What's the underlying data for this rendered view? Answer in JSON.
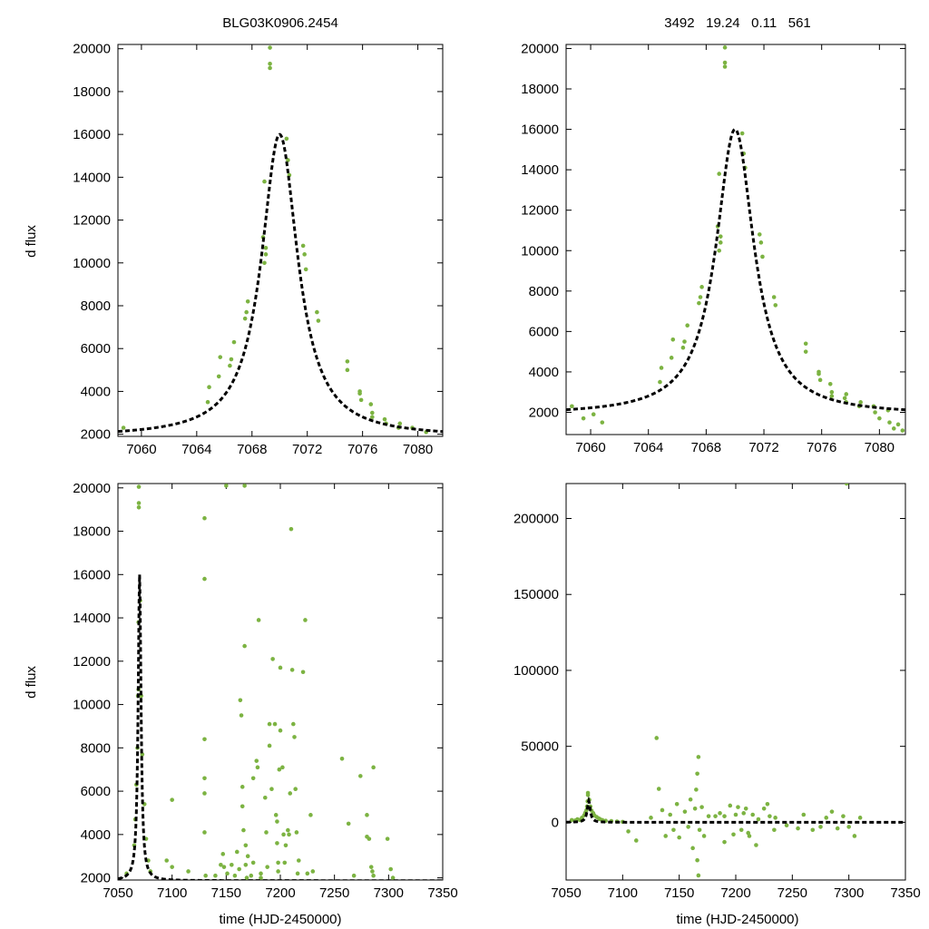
{
  "figure": {
    "title_left": "BLG03K0906.2454",
    "title_right": "3492   19.24   0.11   561",
    "ylabel": "d flux",
    "xlabel": "time (HJD-2450000)"
  },
  "colors": {
    "points": "#7cb342",
    "model": "#000000",
    "axes": "#000000"
  },
  "chart_data": [
    {
      "id": "top-left",
      "type": "scatter",
      "title": "BLG03K0906.2454",
      "xlabel": "",
      "ylabel": "d flux",
      "xlim": [
        7058.3,
        7081.8
      ],
      "ylim": [
        1900,
        20200
      ],
      "xticks": [
        7060,
        7064,
        7068,
        7072,
        7076,
        7080
      ],
      "yticks": [
        2000,
        4000,
        6000,
        8000,
        10000,
        12000,
        14000,
        16000,
        18000,
        20000
      ],
      "model": {
        "t0": 7070.0,
        "peak": 16000,
        "base": 1870,
        "width": 1.6
      },
      "points": [
        [
          7058.7,
          2300
        ],
        [
          7064.8,
          3500
        ],
        [
          7064.9,
          4200
        ],
        [
          7065.6,
          4700
        ],
        [
          7065.7,
          5600
        ],
        [
          7066.4,
          5200
        ],
        [
          7066.5,
          5500
        ],
        [
          7066.7,
          6300
        ],
        [
          7067.5,
          7400
        ],
        [
          7067.6,
          7700
        ],
        [
          7067.7,
          8200
        ],
        [
          7068.9,
          10000
        ],
        [
          7069.0,
          10400
        ],
        [
          7069.0,
          10700
        ],
        [
          7068.8,
          11200
        ],
        [
          7068.9,
          13800
        ],
        [
          7069.3,
          19100
        ],
        [
          7069.3,
          19300
        ],
        [
          7069.3,
          20050
        ],
        [
          7070.5,
          15800
        ],
        [
          7070.6,
          14800
        ],
        [
          7070.7,
          14100
        ],
        [
          7071.8,
          10400
        ],
        [
          7071.9,
          9700
        ],
        [
          7071.7,
          10800
        ],
        [
          7072.7,
          7700
        ],
        [
          7072.8,
          7300
        ],
        [
          7074.9,
          5000
        ],
        [
          7074.9,
          5400
        ],
        [
          7075.8,
          3900
        ],
        [
          7075.9,
          3600
        ],
        [
          7075.8,
          4000
        ],
        [
          7076.6,
          3400
        ],
        [
          7076.7,
          3000
        ],
        [
          7076.7,
          2800
        ],
        [
          7077.6,
          2700
        ],
        [
          7077.7,
          2500
        ],
        [
          7078.6,
          2300
        ],
        [
          7078.7,
          2500
        ],
        [
          7079.6,
          2300
        ],
        [
          7080.6,
          2100
        ]
      ]
    },
    {
      "id": "top-right",
      "type": "scatter",
      "title": "3492   19.24   0.11   561",
      "xlabel": "",
      "ylabel": "",
      "xlim": [
        7058.3,
        7081.8
      ],
      "ylim": [
        900,
        20200
      ],
      "xticks": [
        7060,
        7064,
        7068,
        7072,
        7076,
        7080
      ],
      "yticks": [
        2000,
        4000,
        6000,
        8000,
        10000,
        12000,
        14000,
        16000,
        18000,
        20000
      ],
      "model": {
        "t0": 7070.0,
        "peak": 16000,
        "base": 1870,
        "width": 1.6
      },
      "points": [
        [
          7058.7,
          2300
        ],
        [
          7059.5,
          1700
        ],
        [
          7060.2,
          1900
        ],
        [
          7060.8,
          1500
        ],
        [
          7064.8,
          3500
        ],
        [
          7064.9,
          4200
        ],
        [
          7065.6,
          4700
        ],
        [
          7065.7,
          5600
        ],
        [
          7066.4,
          5200
        ],
        [
          7066.5,
          5500
        ],
        [
          7066.7,
          6300
        ],
        [
          7067.5,
          7400
        ],
        [
          7067.6,
          7700
        ],
        [
          7067.7,
          8200
        ],
        [
          7068.9,
          10000
        ],
        [
          7069.0,
          10400
        ],
        [
          7069.0,
          10700
        ],
        [
          7068.8,
          11200
        ],
        [
          7068.9,
          13800
        ],
        [
          7069.3,
          19100
        ],
        [
          7069.3,
          19300
        ],
        [
          7069.3,
          20050
        ],
        [
          7070.5,
          15800
        ],
        [
          7070.6,
          14800
        ],
        [
          7070.7,
          14100
        ],
        [
          7071.8,
          10400
        ],
        [
          7071.9,
          9700
        ],
        [
          7071.7,
          10800
        ],
        [
          7072.7,
          7700
        ],
        [
          7072.8,
          7300
        ],
        [
          7074.9,
          5000
        ],
        [
          7074.9,
          5400
        ],
        [
          7075.8,
          3900
        ],
        [
          7075.9,
          3600
        ],
        [
          7075.8,
          4000
        ],
        [
          7076.6,
          3400
        ],
        [
          7076.7,
          3000
        ],
        [
          7076.7,
          2800
        ],
        [
          7077.6,
          2700
        ],
        [
          7077.7,
          2500
        ],
        [
          7077.7,
          2900
        ],
        [
          7078.6,
          2300
        ],
        [
          7078.7,
          2500
        ],
        [
          7079.6,
          2300
        ],
        [
          7079.7,
          2000
        ],
        [
          7080.0,
          1700
        ],
        [
          7080.6,
          2100
        ],
        [
          7080.7,
          1500
        ],
        [
          7081.0,
          1200
        ],
        [
          7081.3,
          1400
        ],
        [
          7081.6,
          1100
        ]
      ]
    },
    {
      "id": "bottom-left",
      "type": "scatter",
      "title": "",
      "xlabel": "time (HJD-2450000)",
      "ylabel": "d flux",
      "xlim": [
        7050,
        7350
      ],
      "ylim": [
        1900,
        20200
      ],
      "xticks": [
        7050,
        7100,
        7150,
        7200,
        7250,
        7300,
        7350
      ],
      "yticks": [
        2000,
        4000,
        6000,
        8000,
        10000,
        12000,
        14000,
        16000,
        18000,
        20000
      ],
      "model": {
        "t0": 7070.0,
        "peak": 16000,
        "base": 1870,
        "width": 1.6
      },
      "points": [
        [
          7058,
          2200
        ],
        [
          7065,
          3500
        ],
        [
          7066,
          4700
        ],
        [
          7067,
          6300
        ],
        [
          7068,
          8000
        ],
        [
          7068.5,
          10400
        ],
        [
          7069,
          10700
        ],
        [
          7069,
          13800
        ],
        [
          7069.3,
          19100
        ],
        [
          7069.3,
          19300
        ],
        [
          7069.3,
          20050
        ],
        [
          7070.5,
          14800
        ],
        [
          7071.5,
          10400
        ],
        [
          7072.5,
          7700
        ],
        [
          7074.5,
          5400
        ],
        [
          7076,
          3800
        ],
        [
          7078,
          2800
        ],
        [
          7080,
          2300
        ],
        [
          7095,
          2800
        ],
        [
          7100,
          5600
        ],
        [
          7100,
          2500
        ],
        [
          7115,
          2300
        ],
        [
          7130,
          18600
        ],
        [
          7130,
          15800
        ],
        [
          7130,
          8400
        ],
        [
          7130,
          6600
        ],
        [
          7130,
          5900
        ],
        [
          7130,
          4100
        ],
        [
          7131,
          2100
        ],
        [
          7140,
          2100
        ],
        [
          7145,
          2600
        ],
        [
          7147,
          3100
        ],
        [
          7148,
          2500
        ],
        [
          7150,
          20100
        ],
        [
          7151,
          2200
        ],
        [
          7155,
          2600
        ],
        [
          7158,
          2100
        ],
        [
          7160,
          3200
        ],
        [
          7162,
          2400
        ],
        [
          7163,
          10200
        ],
        [
          7164,
          9500
        ],
        [
          7165,
          6200
        ],
        [
          7165,
          5300
        ],
        [
          7166,
          4200
        ],
        [
          7167,
          20100
        ],
        [
          7167,
          12700
        ],
        [
          7168,
          3500
        ],
        [
          7168,
          2600
        ],
        [
          7169,
          2000
        ],
        [
          7170,
          3000
        ],
        [
          7173,
          2100
        ],
        [
          7175,
          2700
        ],
        [
          7175,
          6600
        ],
        [
          7178,
          7400
        ],
        [
          7179,
          7100
        ],
        [
          7180,
          13900
        ],
        [
          7182,
          2200
        ],
        [
          7182,
          2000
        ],
        [
          7186,
          5700
        ],
        [
          7187,
          4100
        ],
        [
          7188,
          2500
        ],
        [
          7190,
          9100
        ],
        [
          7190,
          8100
        ],
        [
          7192,
          6100
        ],
        [
          7193,
          12100
        ],
        [
          7195,
          9100
        ],
        [
          7196,
          4900
        ],
        [
          7197,
          4600
        ],
        [
          7197,
          3600
        ],
        [
          7198,
          2700
        ],
        [
          7198,
          2300
        ],
        [
          7199,
          7000
        ],
        [
          7200,
          11700
        ],
        [
          7200,
          8800
        ],
        [
          7202,
          7100
        ],
        [
          7203,
          4000
        ],
        [
          7204,
          2700
        ],
        [
          7205,
          3500
        ],
        [
          7207,
          4200
        ],
        [
          7208,
          4000
        ],
        [
          7209,
          5900
        ],
        [
          7210,
          18100
        ],
        [
          7211,
          11600
        ],
        [
          7212,
          9100
        ],
        [
          7213,
          8500
        ],
        [
          7214,
          6100
        ],
        [
          7215,
          4100
        ],
        [
          7216,
          2200
        ],
        [
          7217,
          2800
        ],
        [
          7221,
          11500
        ],
        [
          7223,
          13900
        ],
        [
          7225,
          2200
        ],
        [
          7228,
          4900
        ],
        [
          7230,
          2300
        ],
        [
          7257,
          7500
        ],
        [
          7263,
          4500
        ],
        [
          7268,
          2100
        ],
        [
          7274,
          6700
        ],
        [
          7280,
          4900
        ],
        [
          7280,
          3900
        ],
        [
          7282,
          3800
        ],
        [
          7284,
          2500
        ],
        [
          7285,
          2300
        ],
        [
          7286,
          7100
        ],
        [
          7286,
          2100
        ],
        [
          7299,
          3800
        ],
        [
          7302,
          2400
        ],
        [
          7304,
          2000
        ]
      ]
    },
    {
      "id": "bottom-right",
      "type": "scatter",
      "title": "",
      "xlabel": "time (HJD-2450000)",
      "ylabel": "",
      "xlim": [
        7050,
        7350
      ],
      "ylim": [
        -38000,
        223000
      ],
      "xticks": [
        7050,
        7100,
        7150,
        7200,
        7250,
        7300,
        7350
      ],
      "yticks": [
        0,
        50000,
        100000,
        150000,
        200000
      ],
      "model": {
        "t0": 7070.0,
        "peak": 16000,
        "base": 1870,
        "width": 1.6
      },
      "baseline_offset": 1870,
      "points": [
        [
          7055,
          1500
        ],
        [
          7058,
          1200
        ],
        [
          7060,
          2000
        ],
        [
          7062,
          1500
        ],
        [
          7064,
          3000
        ],
        [
          7066,
          4700
        ],
        [
          7067,
          6300
        ],
        [
          7068,
          8000
        ],
        [
          7068.5,
          10400
        ],
        [
          7069,
          13800
        ],
        [
          7069.3,
          19300
        ],
        [
          7069.3,
          18000
        ],
        [
          7070.5,
          14800
        ],
        [
          7071.5,
          10400
        ],
        [
          7072.5,
          7700
        ],
        [
          7074,
          6000
        ],
        [
          7075,
          4500
        ],
        [
          7077,
          3500
        ],
        [
          7079,
          2500
        ],
        [
          7080,
          2000
        ],
        [
          7082,
          1500
        ],
        [
          7085,
          1000
        ],
        [
          7090,
          800
        ],
        [
          7095,
          500
        ],
        [
          7100,
          300
        ],
        [
          7105,
          -6000
        ],
        [
          7112,
          -12000
        ],
        [
          7125,
          3000
        ],
        [
          7130,
          55500
        ],
        [
          7132,
          22000
        ],
        [
          7135,
          8000
        ],
        [
          7138,
          -9000
        ],
        [
          7142,
          5000
        ],
        [
          7145,
          -5000
        ],
        [
          7148,
          12000
        ],
        [
          7150,
          -10000
        ],
        [
          7155,
          7000
        ],
        [
          7158,
          -3000
        ],
        [
          7160,
          15000
        ],
        [
          7162,
          -17000
        ],
        [
          7164,
          9000
        ],
        [
          7165,
          21500
        ],
        [
          7166,
          32000
        ],
        [
          7166,
          -25000
        ],
        [
          7167,
          43000
        ],
        [
          7167,
          -35000
        ],
        [
          7168,
          -5000
        ],
        [
          7170,
          10000
        ],
        [
          7172,
          -9000
        ],
        [
          7176,
          4000
        ],
        [
          7182,
          4000
        ],
        [
          7186,
          6000
        ],
        [
          7190,
          4000
        ],
        [
          7190,
          -13000
        ],
        [
          7195,
          11000
        ],
        [
          7198,
          -8000
        ],
        [
          7200,
          5000
        ],
        [
          7202,
          10000
        ],
        [
          7205,
          -5000
        ],
        [
          7207,
          6000
        ],
        [
          7209,
          9000
        ],
        [
          7211,
          -7000
        ],
        [
          7212,
          -9000
        ],
        [
          7215,
          5000
        ],
        [
          7218,
          -15000
        ],
        [
          7220,
          2000
        ],
        [
          7225,
          9000
        ],
        [
          7228,
          12000
        ],
        [
          7230,
          4000
        ],
        [
          7234,
          -5000
        ],
        [
          7235,
          3000
        ],
        [
          7245,
          -2000
        ],
        [
          7255,
          -4000
        ],
        [
          7260,
          5000
        ],
        [
          7268,
          -5000
        ],
        [
          7275,
          -3000
        ],
        [
          7280,
          3000
        ],
        [
          7285,
          7000
        ],
        [
          7290,
          -4000
        ],
        [
          7295,
          4000
        ],
        [
          7298,
          223000
        ],
        [
          7300,
          -3000
        ],
        [
          7305,
          -9000
        ],
        [
          7310,
          3000
        ]
      ]
    }
  ]
}
